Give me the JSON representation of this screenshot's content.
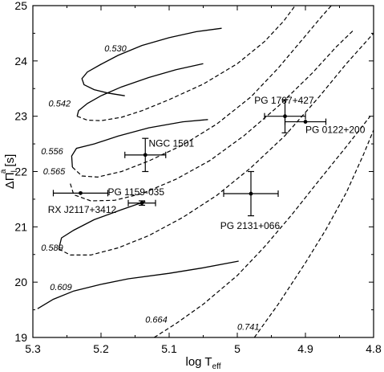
{
  "chart_data": {
    "type": "line",
    "xlabel": {
      "main": "log T",
      "sub": "eff"
    },
    "ylabel": {
      "main": "ΔΠ",
      "sub": "l",
      "sup": "a",
      "unit": "[s]"
    },
    "xlim": [
      5.3,
      4.8
    ],
    "ylim": [
      19,
      25
    ],
    "x_ticks": [
      "5.3",
      "5.2",
      "5.1",
      "5",
      "4.9",
      "4.8"
    ],
    "x_tick_values": [
      5.3,
      5.2,
      5.1,
      5.0,
      4.9,
      4.8
    ],
    "y_ticks": [
      "19",
      "20",
      "21",
      "22",
      "23",
      "24",
      "25"
    ],
    "y_tick_values": [
      19,
      20,
      21,
      22,
      23,
      24,
      25
    ],
    "tracks": [
      {
        "name": "0.530",
        "label_at": [
          5.195,
          24.17
        ],
        "solid": [
          [
            5.023,
            24.59
          ],
          [
            5.06,
            24.53
          ],
          [
            5.1,
            24.42
          ],
          [
            5.14,
            24.28
          ],
          [
            5.175,
            24.1
          ],
          [
            5.2,
            23.94
          ],
          [
            5.22,
            23.8
          ],
          [
            5.228,
            23.68
          ],
          [
            5.225,
            23.57
          ],
          [
            5.21,
            23.48
          ],
          [
            5.19,
            23.42
          ],
          [
            5.165,
            23.37
          ]
        ],
        "dashed": []
      },
      {
        "name": "0.542",
        "label_at": [
          5.277,
          23.18
        ],
        "solid": [
          [
            5.05,
            23.95
          ],
          [
            5.09,
            23.84
          ],
          [
            5.13,
            23.7
          ],
          [
            5.17,
            23.53
          ],
          [
            5.2,
            23.37
          ],
          [
            5.22,
            23.23
          ],
          [
            5.233,
            23.1
          ],
          [
            5.235,
            23.0
          ]
        ],
        "dashed": [
          [
            5.235,
            23.0
          ],
          [
            5.22,
            22.93
          ],
          [
            5.2,
            22.92
          ],
          [
            5.17,
            22.98
          ],
          [
            5.14,
            23.1
          ],
          [
            5.1,
            23.3
          ],
          [
            5.05,
            23.58
          ],
          [
            5.0,
            23.95
          ],
          [
            4.96,
            24.35
          ],
          [
            4.932,
            24.72
          ],
          [
            4.915,
            25.0
          ]
        ]
      },
      {
        "name": "0.556",
        "label_at": [
          5.288,
          22.31
        ],
        "solid": [
          [
            5.242,
            22.08
          ],
          [
            5.243,
            22.28
          ],
          [
            5.236,
            22.42
          ],
          [
            5.21,
            22.5
          ],
          [
            5.175,
            22.64
          ],
          [
            5.13,
            22.79
          ],
          [
            5.08,
            22.9
          ],
          [
            5.043,
            22.94
          ]
        ],
        "dashed": [
          [
            5.242,
            22.08
          ],
          [
            5.228,
            21.92
          ],
          [
            5.205,
            21.9
          ],
          [
            5.17,
            22.0
          ],
          [
            5.13,
            22.19
          ],
          [
            5.08,
            22.48
          ],
          [
            5.03,
            22.86
          ],
          [
            4.98,
            23.35
          ],
          [
            4.94,
            23.87
          ],
          [
            4.905,
            24.38
          ],
          [
            4.875,
            24.82
          ],
          [
            4.862,
            25.0
          ]
        ]
      },
      {
        "name": "0.565",
        "label_at": [
          5.285,
          21.95
        ],
        "solid": [],
        "dashed": [
          [
            5.245,
            21.78
          ],
          [
            5.24,
            21.58
          ],
          [
            5.215,
            21.47
          ],
          [
            5.18,
            21.48
          ],
          [
            5.14,
            21.6
          ],
          [
            5.09,
            21.86
          ],
          [
            5.04,
            22.2
          ],
          [
            4.99,
            22.65
          ],
          [
            4.94,
            23.18
          ],
          [
            4.89,
            23.78
          ],
          [
            4.855,
            24.25
          ],
          [
            4.83,
            24.55
          ]
        ]
      },
      {
        "name": "0.589",
        "label_at": [
          5.288,
          20.57
        ],
        "solid": [
          [
            5.262,
            20.6
          ],
          [
            5.258,
            20.8
          ],
          [
            5.24,
            20.94
          ],
          [
            5.21,
            21.13
          ],
          [
            5.17,
            21.31
          ],
          [
            5.135,
            21.46
          ]
        ],
        "dashed": [
          [
            5.262,
            20.6
          ],
          [
            5.245,
            20.49
          ],
          [
            5.215,
            20.49
          ],
          [
            5.175,
            20.62
          ],
          [
            5.13,
            20.84
          ],
          [
            5.08,
            21.17
          ],
          [
            5.03,
            21.57
          ],
          [
            4.98,
            22.07
          ],
          [
            4.93,
            22.65
          ],
          [
            4.88,
            23.35
          ],
          [
            4.84,
            23.95
          ],
          [
            4.8,
            24.5
          ]
        ]
      },
      {
        "name": "0.609",
        "label_at": [
          5.275,
          19.86
        ],
        "solid": [
          [
            5.293,
            19.52
          ],
          [
            5.27,
            19.69
          ],
          [
            5.24,
            19.84
          ],
          [
            5.2,
            19.96
          ],
          [
            5.16,
            20.06
          ],
          [
            5.1,
            20.16
          ],
          [
            5.05,
            20.26
          ],
          [
            4.998,
            20.38
          ]
        ],
        "dashed": []
      },
      {
        "name": "0.664",
        "label_at": [
          5.135,
          19.27
        ],
        "solid": [],
        "dashed": [
          [
            5.122,
            19.0
          ],
          [
            5.09,
            19.25
          ],
          [
            5.05,
            19.6
          ],
          [
            5.0,
            20.12
          ],
          [
            4.96,
            20.64
          ],
          [
            4.92,
            21.22
          ],
          [
            4.88,
            21.84
          ],
          [
            4.84,
            22.45
          ],
          [
            4.805,
            23.0
          ]
        ]
      },
      {
        "name": "0.741",
        "label_at": [
          5.0,
          19.14
        ],
        "solid": [],
        "dashed": [
          [
            4.975,
            19.0
          ],
          [
            4.94,
            19.6
          ],
          [
            4.9,
            20.35
          ],
          [
            4.87,
            20.95
          ],
          [
            4.84,
            21.62
          ],
          [
            4.815,
            22.3
          ],
          [
            4.8,
            22.75
          ]
        ]
      }
    ],
    "stars": [
      {
        "name": "PG 1707+427",
        "x": 4.93,
        "y": 23.0,
        "xerr": 0.03,
        "yerr": 0.3,
        "label_at": [
          4.975,
          23.23
        ],
        "label_anchor": "start"
      },
      {
        "name": "PG 0122+200",
        "x": 4.9,
        "y": 22.9,
        "xerr": 0.03,
        "yerr": 0.0,
        "label_at": [
          4.9,
          22.7
        ],
        "label_anchor": "start"
      },
      {
        "name": "NGC 1501",
        "x": 5.135,
        "y": 22.3,
        "xerr": 0.03,
        "yerr": 0.3,
        "label_at": [
          5.13,
          22.45
        ],
        "label_anchor": "start"
      },
      {
        "name": "PG 1159-035",
        "x": 5.14,
        "y": 21.43,
        "xerr": 0.02,
        "yerr": 0.04,
        "label_at": [
          5.19,
          21.57
        ],
        "label_anchor": "start"
      },
      {
        "name": "RX J2117+3412",
        "x": 5.23,
        "y": 21.61,
        "xerr": 0.04,
        "yerr": 0.0,
        "label_at": [
          5.278,
          21.25
        ],
        "label_anchor": "start"
      },
      {
        "name": "PG 2131+066",
        "x": 4.98,
        "y": 21.6,
        "xerr": 0.04,
        "yerr": 0.4,
        "label_at": [
          5.025,
          20.96
        ],
        "label_anchor": "start"
      }
    ]
  }
}
